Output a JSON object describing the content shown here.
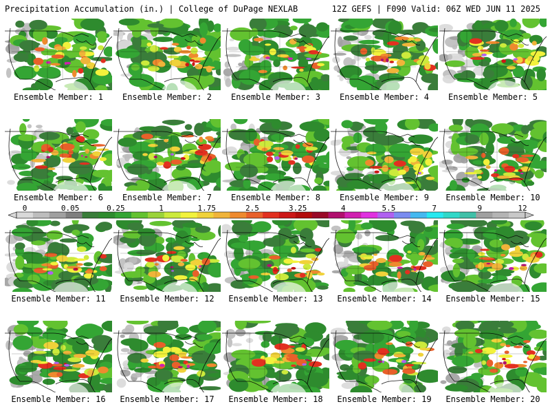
{
  "header": {
    "left": "Precipitation Accumulation (in.) | College of DuPage NEXLAB",
    "right": "12Z GEFS | F090 Valid: 06Z WED JUN 11 2025"
  },
  "panels": [
    {
      "label": "Ensemble Member: 1"
    },
    {
      "label": "Ensemble Member: 2"
    },
    {
      "label": "Ensemble Member: 3"
    },
    {
      "label": "Ensemble Member: 4"
    },
    {
      "label": "Ensemble Member: 5"
    },
    {
      "label": "Ensemble Member: 6"
    },
    {
      "label": "Ensemble Member: 7"
    },
    {
      "label": "Ensemble Member: 8"
    },
    {
      "label": "Ensemble Member: 9"
    },
    {
      "label": "Ensemble Member: 10"
    },
    {
      "label": "Ensemble Member: 11"
    },
    {
      "label": "Ensemble Member: 12"
    },
    {
      "label": "Ensemble Member: 13"
    },
    {
      "label": "Ensemble Member: 14"
    },
    {
      "label": "Ensemble Member: 15"
    },
    {
      "label": "Ensemble Member: 16"
    },
    {
      "label": "Ensemble Member: 17"
    },
    {
      "label": "Ensemble Member: 18"
    },
    {
      "label": "Ensemble Member: 19"
    },
    {
      "label": "Ensemble Member: 20"
    }
  ],
  "colorbar": {
    "tick_labels": [
      "0",
      "0.05",
      "0.25",
      "1",
      "1.75",
      "2.5",
      "3.25",
      "4",
      "5.5",
      "7",
      "9",
      "12"
    ],
    "colors": [
      "#d9d9d9",
      "#bdbdbd",
      "#a0a0a0",
      "#7f7f7f",
      "#3a7d3a",
      "#2e8b2e",
      "#34a534",
      "#63c230",
      "#9bd33a",
      "#ccea3c",
      "#f2f23c",
      "#f0d23a",
      "#f0b43a",
      "#ee8a2e",
      "#e8602a",
      "#e23020",
      "#cc1616",
      "#b30c0c",
      "#990a28",
      "#b0106e",
      "#d020b0",
      "#e030e0",
      "#b060f0",
      "#7a8cf0",
      "#44b8f0",
      "#26e8f0",
      "#30d8c8",
      "#40c0a8",
      "#a0a0a0",
      "#b4b4b4",
      "#c8c8c8"
    ],
    "ocean_color": "#ffffff",
    "land_dry_color": "#ffffff"
  }
}
